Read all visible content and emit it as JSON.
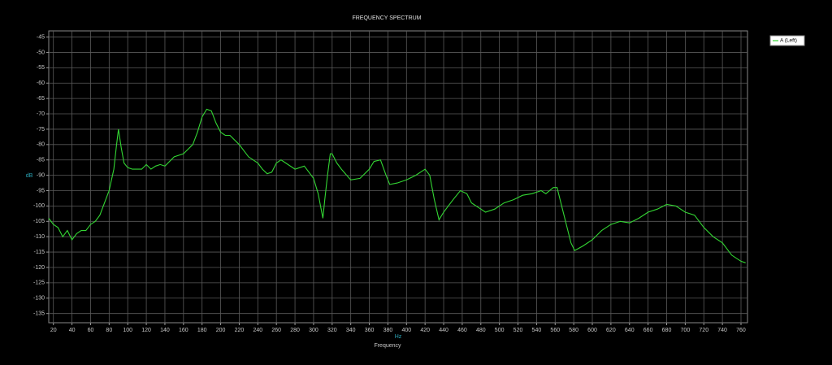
{
  "chart_data": {
    "type": "line",
    "title": "FREQUENCY SPECTRUM",
    "x_label": "Frequency",
    "x_unit": "Hz",
    "y_unit": "dB",
    "grid": true,
    "legend": "top-right",
    "xlim": [
      15,
      767
    ],
    "ylim": [
      -138,
      -43
    ],
    "xticks": [
      20,
      40,
      60,
      80,
      100,
      120,
      140,
      160,
      180,
      200,
      220,
      240,
      260,
      280,
      300,
      320,
      340,
      360,
      380,
      400,
      420,
      440,
      460,
      480,
      500,
      520,
      540,
      560,
      580,
      600,
      620,
      640,
      660,
      680,
      700,
      720,
      740,
      760
    ],
    "yticks": [
      -45,
      -50,
      -55,
      -60,
      -65,
      -70,
      -75,
      -80,
      -85,
      -90,
      -95,
      -100,
      -105,
      -110,
      -115,
      -120,
      -125,
      -130,
      -135
    ],
    "series": [
      {
        "name": "A (Left)",
        "color": "#33d633",
        "x": [
          15,
          20,
          25,
          30,
          35,
          40,
          45,
          50,
          55,
          60,
          65,
          70,
          75,
          80,
          85,
          88,
          90,
          93,
          96,
          100,
          105,
          110,
          115,
          120,
          125,
          130,
          135,
          140,
          150,
          160,
          170,
          175,
          180,
          185,
          190,
          195,
          200,
          205,
          210,
          220,
          230,
          240,
          245,
          250,
          255,
          260,
          265,
          270,
          280,
          290,
          295,
          300,
          305,
          310,
          312,
          315,
          318,
          320,
          325,
          330,
          340,
          350,
          360,
          365,
          372,
          378,
          382,
          390,
          400,
          410,
          420,
          425,
          430,
          435,
          440,
          450,
          458,
          465,
          470,
          480,
          485,
          495,
          505,
          515,
          525,
          535,
          545,
          550,
          558,
          562,
          567,
          572,
          577,
          581,
          590,
          600,
          610,
          620,
          630,
          640,
          650,
          660,
          670,
          680,
          690,
          700,
          710,
          720,
          730,
          740,
          750,
          760,
          765
        ],
        "values": [
          -104,
          -106,
          -107,
          -110,
          -108,
          -111,
          -109,
          -108,
          -108,
          -106,
          -105,
          -103,
          -99,
          -95,
          -88,
          -80,
          -75,
          -81,
          -86,
          -87.5,
          -88,
          -88,
          -88,
          -86.5,
          -88,
          -87,
          -86.5,
          -87,
          -84,
          -83,
          -80,
          -76,
          -71,
          -68.5,
          -69,
          -73,
          -76,
          -77,
          -77,
          -80,
          -84,
          -86,
          -88,
          -89.5,
          -89,
          -86,
          -85,
          -86,
          -88,
          -87,
          -89,
          -91,
          -96,
          -104,
          -98,
          -90,
          -83,
          -83,
          -86,
          -88,
          -91.5,
          -91,
          -88,
          -85.5,
          -85,
          -90,
          -93,
          -92.5,
          -91.5,
          -90,
          -88,
          -90,
          -98,
          -104.5,
          -102,
          -98,
          -95,
          -96,
          -99,
          -101,
          -102,
          -101,
          -99,
          -98,
          -96.5,
          -96,
          -95,
          -96,
          -94,
          -94,
          -100,
          -106,
          -112,
          -114.5,
          -113,
          -111,
          -108,
          -106,
          -105,
          -105.5,
          -104,
          -102,
          -101,
          -99.5,
          -100,
          -102,
          -103,
          -107,
          -110,
          -112,
          -116,
          -118,
          -118.5
        ]
      }
    ]
  }
}
